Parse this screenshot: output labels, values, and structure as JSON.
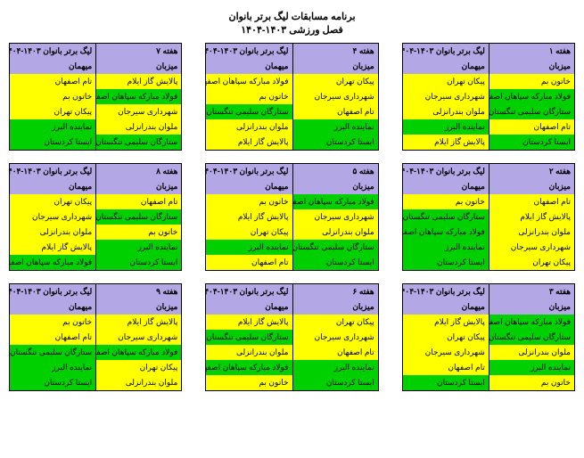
{
  "title1": "برنامه مسابقات لیگ برتر بانوان",
  "title2": "فصل ورزشی ۱۴۰۳-۱۴۰۴",
  "colors": {
    "header": "#b3a7e6",
    "yellow": "#ffff00",
    "green": "#00d000"
  },
  "labels": {
    "league": "لیگ برتر بانوان ۱۴۰۳-۱۴۰۴",
    "host": "میزبان",
    "guest": "میهمان"
  },
  "weeks": [
    {
      "week": "هفته ۱",
      "matches": [
        {
          "host": "خاتون بم",
          "guest": "پیکان تهران",
          "h": "yellow",
          "g": "yellow"
        },
        {
          "host": "فولاد مبارکه سپاهان اصفهان",
          "guest": "شهرداری سیرجان",
          "h": "green",
          "g": "yellow"
        },
        {
          "host": "ستارگان سلیمی تنگستان",
          "guest": "ملوان بندرانزلی",
          "h": "green",
          "g": "yellow"
        },
        {
          "host": "تام اصفهان",
          "guest": "نماینده البرز",
          "h": "yellow",
          "g": "green"
        },
        {
          "host": "ایستا کردستان",
          "guest": "پالایش گاز ایلام",
          "h": "green",
          "g": "yellow"
        }
      ]
    },
    {
      "week": "هفته ۴",
      "matches": [
        {
          "host": "پیکان تهران",
          "guest": "فولاد مبارکه سپاهان اصفهان",
          "h": "yellow",
          "g": "yellow"
        },
        {
          "host": "شهرداری سیرجان",
          "guest": "خاتون بم",
          "h": "yellow",
          "g": "yellow"
        },
        {
          "host": "تام اصفهان",
          "guest": "ستارگان سلیمی تنگستان",
          "h": "yellow",
          "g": "green"
        },
        {
          "host": "نماینده البرز",
          "guest": "ملوان بندرانزلی",
          "h": "green",
          "g": "yellow"
        },
        {
          "host": "ایستا کردستان",
          "guest": "پالایش گاز ایلام",
          "h": "green",
          "g": "yellow"
        }
      ]
    },
    {
      "week": "هفته ۷",
      "matches": [
        {
          "host": "پالایش گاز ایلام",
          "guest": "تام اصفهان",
          "h": "yellow",
          "g": "yellow"
        },
        {
          "host": "فولاد مبارکه سپاهان اصفهان",
          "guest": "خاتون بم",
          "h": "green",
          "g": "yellow"
        },
        {
          "host": "شهرداری سیرجان",
          "guest": "پیکان تهران",
          "h": "yellow",
          "g": "yellow"
        },
        {
          "host": "ملوان بندرانزلی",
          "guest": "نماینده البرز",
          "h": "yellow",
          "g": "green"
        },
        {
          "host": "ستارگان سلیمی تنگستان",
          "guest": "ایستا کردستان",
          "h": "green",
          "g": "green"
        }
      ]
    },
    {
      "week": "هفته ۲",
      "matches": [
        {
          "host": "تام اصفهان",
          "guest": "خاتون بم",
          "h": "yellow",
          "g": "yellow"
        },
        {
          "host": "پالایش گاز ایلام",
          "guest": "ستارگان سلیمی تنگستان",
          "h": "yellow",
          "g": "green"
        },
        {
          "host": "ملوان بندرانزلی",
          "guest": "فولاد مبارکه سپاهان اصفهان",
          "h": "yellow",
          "g": "green"
        },
        {
          "host": "شهرداری سیرجان",
          "guest": "نماینده البرز",
          "h": "yellow",
          "g": "green"
        },
        {
          "host": "پیکان تهران",
          "guest": "ایستا کردستان",
          "h": "yellow",
          "g": "green"
        }
      ]
    },
    {
      "week": "هفته ۵",
      "matches": [
        {
          "host": "فولاد مبارکه سپاهان اصفهان",
          "guest": "خاتون بم",
          "h": "green",
          "g": "yellow"
        },
        {
          "host": "شهرداری سیرجان",
          "guest": "پالایش گاز ایلام",
          "h": "yellow",
          "g": "yellow"
        },
        {
          "host": "ملوان بندرانزلی",
          "guest": "پیکان تهران",
          "h": "yellow",
          "g": "yellow"
        },
        {
          "host": "ستارگان سلیمی تنگستان",
          "guest": "نماینده البرز",
          "h": "green",
          "g": "green"
        },
        {
          "host": "ایستا کردستان",
          "guest": "تام اصفهان",
          "h": "green",
          "g": "yellow"
        }
      ]
    },
    {
      "week": "هفته ۸",
      "matches": [
        {
          "host": "تام اصفهان",
          "guest": "پیکان تهران",
          "h": "yellow",
          "g": "yellow"
        },
        {
          "host": "ستارگان سلیمی تنگستان",
          "guest": "شهرداری سیرجان",
          "h": "green",
          "g": "yellow"
        },
        {
          "host": "خاتون بم",
          "guest": "ملوان بندرانزلی",
          "h": "yellow",
          "g": "yellow"
        },
        {
          "host": "نماینده البرز",
          "guest": "پالایش گاز ایلام",
          "h": "green",
          "g": "yellow"
        },
        {
          "host": "ایستا کردستان",
          "guest": "فولاد مبارکه سپاهان اصفهان",
          "h": "green",
          "g": "green"
        }
      ]
    },
    {
      "week": "هفته ۳",
      "matches": [
        {
          "host": "فولاد مبارکه سپاهان اصفهان",
          "guest": "پالایش گاز ایلام",
          "h": "green",
          "g": "yellow"
        },
        {
          "host": "ستارگان سلیمی تنگستان",
          "guest": "پیکان تهران",
          "h": "green",
          "g": "yellow"
        },
        {
          "host": "ملوان بندرانزلی",
          "guest": "شهرداری سیرجان",
          "h": "yellow",
          "g": "yellow"
        },
        {
          "host": "نماینده البرز",
          "guest": "تام اصفهان",
          "h": "green",
          "g": "yellow"
        },
        {
          "host": "خاتون بم",
          "guest": "ایستا کردستان",
          "h": "yellow",
          "g": "green"
        }
      ]
    },
    {
      "week": "هفته ۶",
      "matches": [
        {
          "host": "پیکان تهران",
          "guest": "پالایش گاز ایلام",
          "h": "yellow",
          "g": "yellow"
        },
        {
          "host": "شهرداری سیرجان",
          "guest": "ستارگان سلیمی تنگستان",
          "h": "yellow",
          "g": "green"
        },
        {
          "host": "تام اصفهان",
          "guest": "ملوان بندرانزلی",
          "h": "yellow",
          "g": "yellow"
        },
        {
          "host": "نماینده البرز",
          "guest": "فولاد مبارکه سپاهان اصفهان",
          "h": "green",
          "g": "green"
        },
        {
          "host": "ایستا کردستان",
          "guest": "خاتون بم",
          "h": "green",
          "g": "yellow"
        }
      ]
    },
    {
      "week": "هفته ۹",
      "matches": [
        {
          "host": "پالایش گاز ایلام",
          "guest": "خاتون بم",
          "h": "yellow",
          "g": "yellow"
        },
        {
          "host": "شهرداری سیرجان",
          "guest": "تام اصفهان",
          "h": "yellow",
          "g": "yellow"
        },
        {
          "host": "فولاد مبارکه سپاهان اصفهان",
          "guest": "ستارگان سلیمی تنگستان",
          "h": "green",
          "g": "green"
        },
        {
          "host": "پیکان تهران",
          "guest": "نماینده البرز",
          "h": "yellow",
          "g": "green"
        },
        {
          "host": "ملوان بندرانزلی",
          "guest": "ایستا کردستان",
          "h": "yellow",
          "g": "green"
        }
      ]
    }
  ]
}
